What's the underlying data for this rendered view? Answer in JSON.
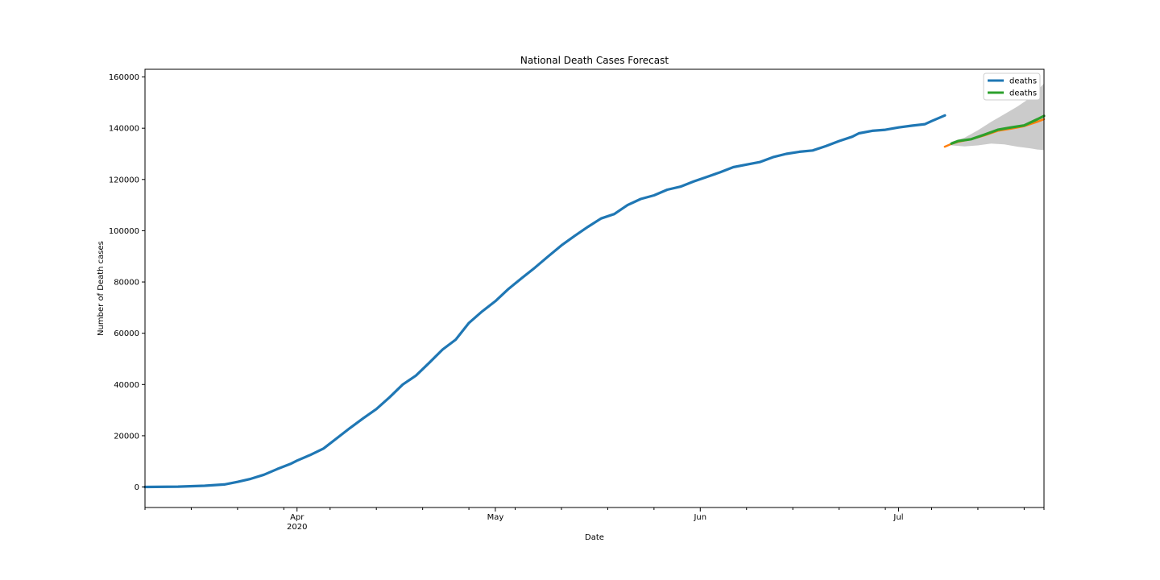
{
  "chart_data": {
    "type": "line",
    "title": "National Death Cases Forecast",
    "xlabel": "Date",
    "ylabel": "Number of Death cases",
    "x_type": "date",
    "xlim": [
      "2020-03-09",
      "2020-07-23"
    ],
    "ylim": [
      -8000,
      163000
    ],
    "y_ticks": [
      0,
      20000,
      40000,
      60000,
      80000,
      100000,
      120000,
      140000,
      160000
    ],
    "x_major_ticks": [
      {
        "date": "2020-04-01",
        "label": "Apr",
        "sublabel": "2020"
      },
      {
        "date": "2020-05-01",
        "label": "May",
        "sublabel": ""
      },
      {
        "date": "2020-06-01",
        "label": "Jun",
        "sublabel": ""
      },
      {
        "date": "2020-07-01",
        "label": "Jul",
        "sublabel": ""
      }
    ],
    "x_minor_ticks": [
      "2020-03-09",
      "2020-03-16",
      "2020-03-23",
      "2020-03-30",
      "2020-04-06",
      "2020-04-13",
      "2020-04-20",
      "2020-04-27",
      "2020-05-04",
      "2020-05-11",
      "2020-05-18",
      "2020-05-25",
      "2020-06-08",
      "2020-06-15",
      "2020-06-22",
      "2020-06-29",
      "2020-07-06",
      "2020-07-13",
      "2020-07-20",
      "2020-07-23"
    ],
    "legend": {
      "position": "top-right",
      "entries": [
        "deaths",
        "deaths"
      ]
    },
    "grid": false,
    "colors": {
      "observed": "#1f77b4",
      "prediction": "#ff7f0e",
      "forecast": "#2ca02c",
      "confidence": "#c8c8c8"
    },
    "series": [
      {
        "name": "deaths",
        "role": "observed",
        "x": [
          "2020-03-09",
          "2020-03-14",
          "2020-03-18",
          "2020-03-21",
          "2020-03-23",
          "2020-03-25",
          "2020-03-27",
          "2020-03-29",
          "2020-03-31",
          "2020-04-01",
          "2020-04-03",
          "2020-04-05",
          "2020-04-07",
          "2020-04-09",
          "2020-04-11",
          "2020-04-13",
          "2020-04-15",
          "2020-04-17",
          "2020-04-19",
          "2020-04-21",
          "2020-04-23",
          "2020-04-25",
          "2020-04-27",
          "2020-04-29",
          "2020-05-01",
          "2020-05-03",
          "2020-05-05",
          "2020-05-07",
          "2020-05-09",
          "2020-05-11",
          "2020-05-13",
          "2020-05-15",
          "2020-05-17",
          "2020-05-19",
          "2020-05-21",
          "2020-05-23",
          "2020-05-25",
          "2020-05-27",
          "2020-05-29",
          "2020-05-31",
          "2020-06-02",
          "2020-06-04",
          "2020-06-06",
          "2020-06-08",
          "2020-06-10",
          "2020-06-12",
          "2020-06-14",
          "2020-06-16",
          "2020-06-18",
          "2020-06-20",
          "2020-06-22",
          "2020-06-24",
          "2020-06-25",
          "2020-06-27",
          "2020-06-29",
          "2020-07-01",
          "2020-07-03",
          "2020-07-05",
          "2020-07-06",
          "2020-07-08"
        ],
        "y": [
          0,
          150,
          500,
          1000,
          2000,
          3200,
          4800,
          7000,
          9000,
          10300,
          12500,
          15000,
          19000,
          23000,
          26800,
          30400,
          35000,
          40000,
          43500,
          48500,
          53600,
          57500,
          64000,
          68500,
          72500,
          77300,
          81500,
          85600,
          90000,
          94300,
          98000,
          101500,
          104800,
          106500,
          110000,
          112400,
          113800,
          116000,
          117200,
          119200,
          121000,
          122800,
          124800,
          125800,
          126800,
          128700,
          130000,
          130800,
          131300,
          133000,
          135000,
          136700,
          138000,
          139000,
          139400,
          140300,
          141000,
          141600,
          142800,
          145000
        ]
      },
      {
        "name": "deaths",
        "role": "forecast",
        "x": [
          "2020-07-09",
          "2020-07-10",
          "2020-07-12",
          "2020-07-14",
          "2020-07-16",
          "2020-07-18",
          "2020-07-20",
          "2020-07-22",
          "2020-07-23"
        ],
        "y": [
          134000,
          135000,
          135700,
          137500,
          139400,
          140300,
          141100,
          143500,
          144800
        ]
      },
      {
        "role": "prediction",
        "x": [
          "2020-07-08",
          "2020-07-09",
          "2020-07-10",
          "2020-07-12",
          "2020-07-14",
          "2020-07-16",
          "2020-07-18",
          "2020-07-20",
          "2020-07-22",
          "2020-07-23"
        ],
        "y": [
          132800,
          133900,
          134700,
          135700,
          137200,
          139000,
          139800,
          140800,
          142500,
          143500
        ]
      }
    ],
    "confidence_band": {
      "x": [
        "2020-07-09",
        "2020-07-11",
        "2020-07-13",
        "2020-07-15",
        "2020-07-17",
        "2020-07-19",
        "2020-07-21",
        "2020-07-22",
        "2020-07-23"
      ],
      "lower": [
        133300,
        132900,
        133300,
        134000,
        133700,
        132800,
        132100,
        131700,
        131500
      ],
      "upper": [
        134700,
        136300,
        139200,
        142500,
        145500,
        148500,
        152000,
        154700,
        157500
      ]
    }
  }
}
